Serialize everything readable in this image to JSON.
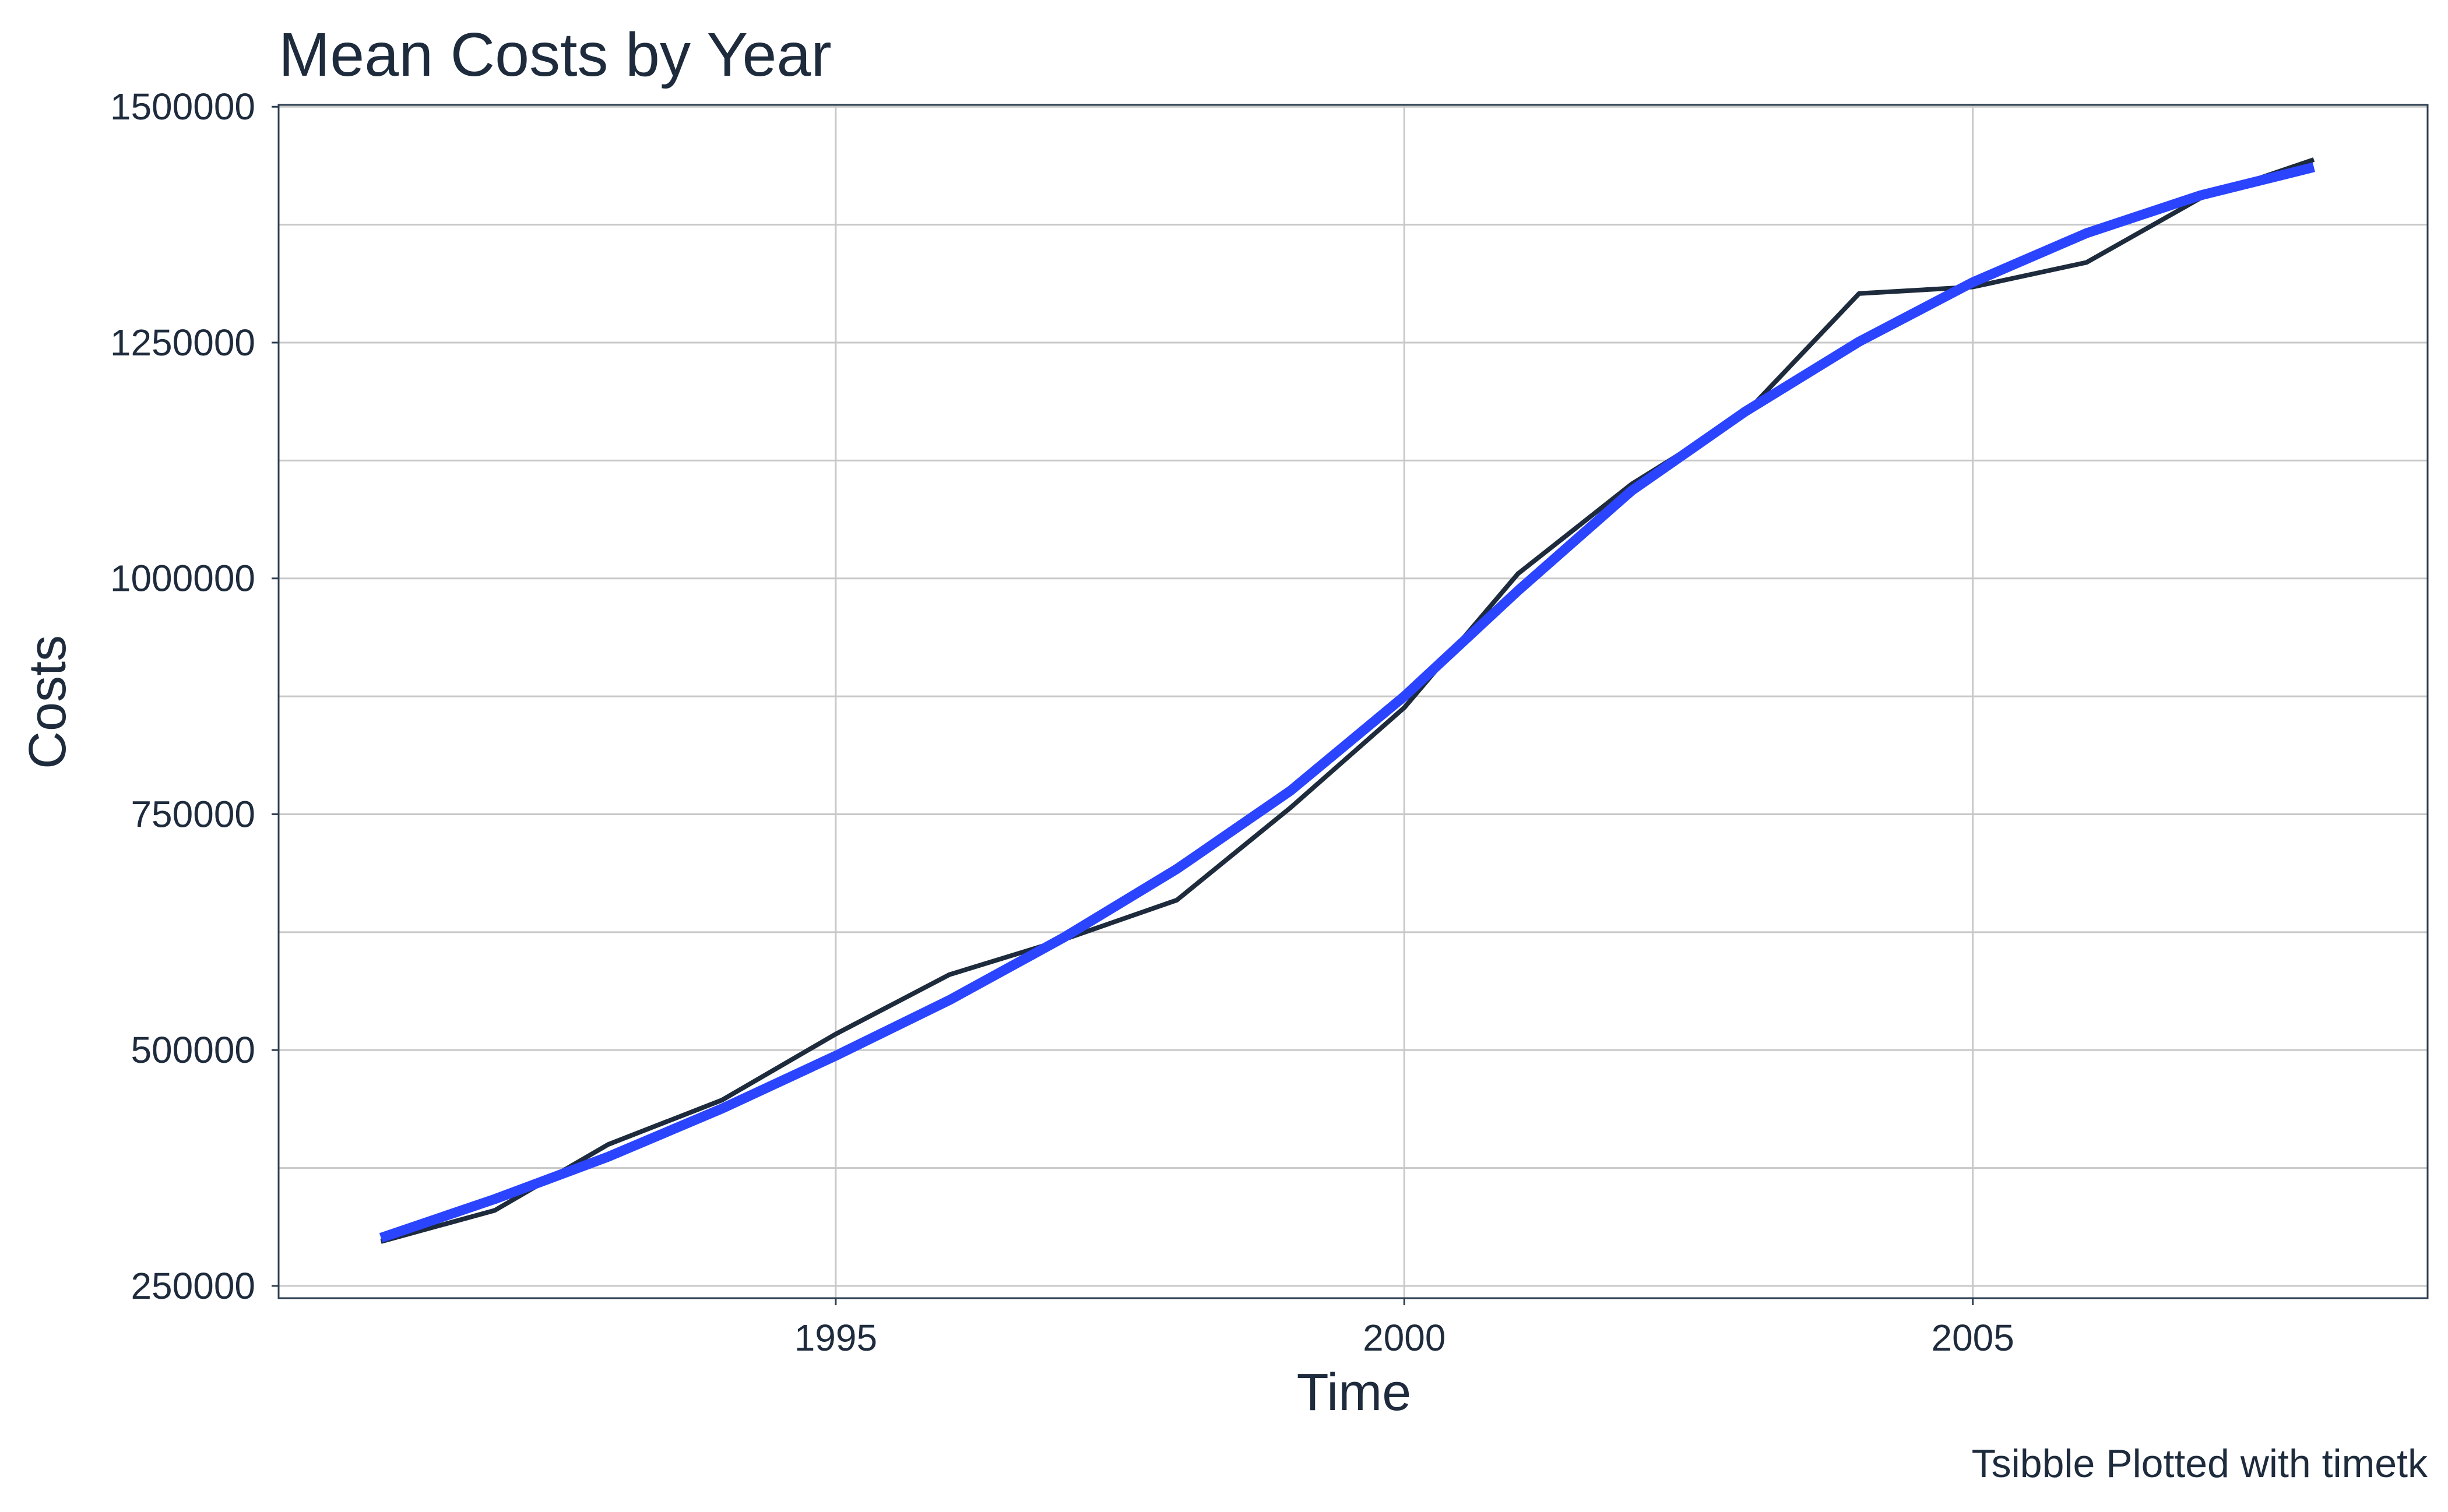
{
  "chart_data": {
    "type": "line",
    "title": "Mean Costs by Year",
    "xlabel": "Time",
    "ylabel": "Costs",
    "caption": "Tsibble Plotted with timetk",
    "xlim": [
      1990.1,
      2009.0
    ],
    "ylim": [
      237000,
      1502000
    ],
    "x_ticks": [
      1995,
      2000,
      2005
    ],
    "x_tick_labels": [
      "1995",
      "2000",
      "2005"
    ],
    "y_ticks": [
      250000,
      500000,
      750000,
      1000000,
      1250000,
      1500000
    ],
    "y_tick_labels": [
      "250000",
      "500000",
      "750000",
      "1000000",
      "1250000",
      "1500000"
    ],
    "grid": true,
    "legend": "none",
    "series": [
      {
        "color": "#1e2b3c",
        "x": [
          1991,
          1992,
          1993,
          1994,
          1995,
          1996,
          1997,
          1998,
          1999,
          2000,
          2001,
          2002,
          2003,
          2004,
          2005,
          2006,
          2007,
          2008
        ],
        "y": [
          297000,
          330000,
          400000,
          447000,
          517000,
          580000,
          617000,
          659000,
          757000,
          863000,
          1005000,
          1100000,
          1175000,
          1302000,
          1309000,
          1335000,
          1403000,
          1444000
        ]
      },
      {
        "color": "#2b44ff",
        "x": [
          1991,
          1992,
          1993,
          1994,
          1995,
          1996,
          1997,
          1998,
          1999,
          2000,
          2001,
          2002,
          2003,
          2004,
          2005,
          2006,
          2007,
          2008
        ],
        "y": [
          301000,
          342000,
          387000,
          438000,
          494000,
          553000,
          619000,
          692000,
          775000,
          875000,
          987000,
          1093000,
          1177000,
          1251000,
          1314000,
          1366000,
          1406000,
          1436000
        ]
      }
    ]
  }
}
